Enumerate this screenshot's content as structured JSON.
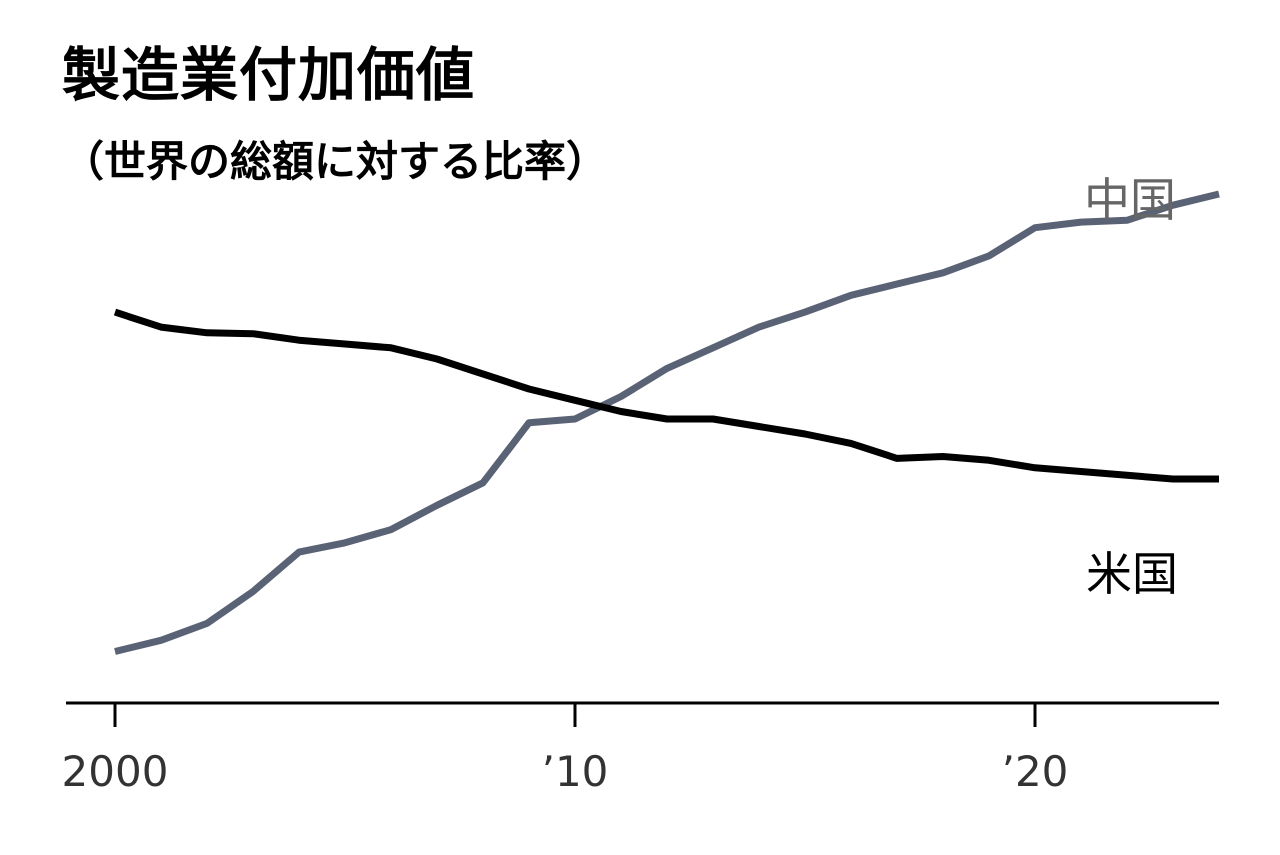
{
  "title": "製造業付加価値",
  "subtitle": "（世界の総額に対する比率）",
  "colors": {
    "china": "#5a6275",
    "us": "#000000",
    "china_label": "#666666",
    "axis": "#000000"
  },
  "chart_data": {
    "type": "line",
    "title": "製造業付加価値",
    "subtitle": "（世界の総額に対する比率）",
    "x": [
      2000,
      2001,
      2002,
      2003,
      2004,
      2005,
      2006,
      2007,
      2008,
      2009,
      2010,
      2011,
      2012,
      2013,
      2014,
      2015,
      2016,
      2017,
      2018,
      2019,
      2020,
      2021,
      2022,
      2023,
      2024
    ],
    "x_ticks": [
      {
        "value": 2000,
        "label": "2000"
      },
      {
        "value": 2010,
        "label": "’10"
      },
      {
        "value": 2020,
        "label": "’20"
      }
    ],
    "xlim": [
      1999,
      2024
    ],
    "ylim": [
      4,
      32
    ],
    "grid": false,
    "series": [
      {
        "name": "中国",
        "color": "#5a6275",
        "values": [
          6.0,
          6.6,
          7.5,
          9.2,
          11.3,
          11.8,
          12.5,
          13.8,
          15.0,
          18.2,
          18.4,
          19.6,
          21.1,
          22.2,
          23.3,
          24.1,
          25.0,
          25.6,
          26.2,
          27.1,
          28.6,
          28.9,
          29.0,
          29.8,
          30.4
        ]
      },
      {
        "name": "米国",
        "color": "#000000",
        "values": [
          24.1,
          23.3,
          23.0,
          22.95,
          22.6,
          22.4,
          22.2,
          21.6,
          20.8,
          20.0,
          19.4,
          18.8,
          18.4,
          18.4,
          18.0,
          17.6,
          17.1,
          16.3,
          16.4,
          16.2,
          15.8,
          15.6,
          15.4,
          15.2,
          15.2
        ]
      }
    ],
    "legend": "inline, right side next to line ends"
  }
}
